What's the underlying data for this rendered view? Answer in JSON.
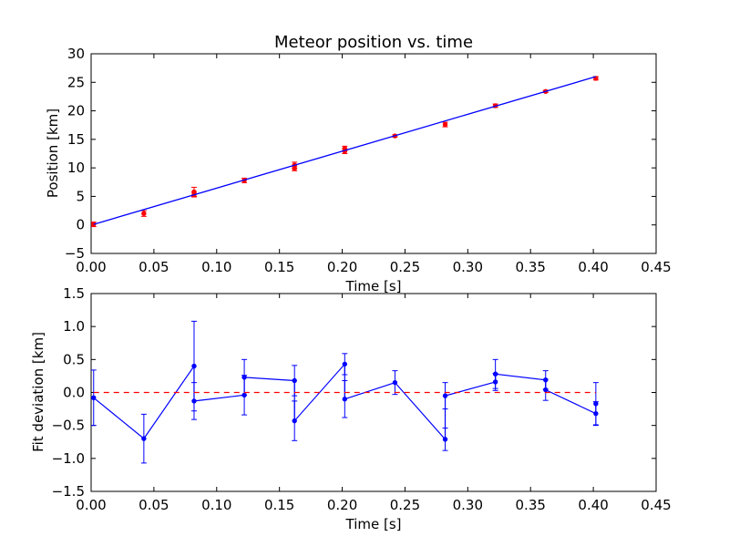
{
  "chart_data": [
    {
      "type": "line",
      "title": "Meteor position vs. time",
      "xlabel": "Time [s]",
      "ylabel": "Position [km]",
      "xlim": [
        0.0,
        0.45
      ],
      "ylim": [
        -5,
        30
      ],
      "x_ticks": [
        "0.00",
        "0.05",
        "0.10",
        "0.15",
        "0.20",
        "0.25",
        "0.30",
        "0.35",
        "0.40",
        "0.45"
      ],
      "y_ticks": [
        "−5",
        "0",
        "5",
        "10",
        "15",
        "20",
        "25",
        "30"
      ],
      "grid": false,
      "series": [
        {
          "kind": "errorbar-points",
          "color": "#ff0000",
          "x": [
            0.002,
            0.042,
            0.082,
            0.082,
            0.122,
            0.162,
            0.162,
            0.202,
            0.202,
            0.242,
            0.282,
            0.322,
            0.362,
            0.402
          ],
          "y": [
            0.1,
            2.0,
            5.8,
            5.3,
            7.8,
            10.5,
            9.9,
            13.4,
            12.9,
            15.6,
            17.6,
            20.9,
            23.4,
            25.7
          ],
          "yerr": [
            0.4,
            0.5,
            0.8,
            0.4,
            0.4,
            0.5,
            0.4,
            0.4,
            0.4,
            0.2,
            0.4,
            0.3,
            0.2,
            0.3
          ]
        },
        {
          "kind": "fit-line",
          "color": "#0000ff",
          "x": [
            0.002,
            0.402
          ],
          "y": [
            0.1,
            26.0
          ]
        }
      ]
    },
    {
      "type": "line",
      "title": "",
      "xlabel": "Time [s]",
      "ylabel": "Fit deviation [km]",
      "xlim": [
        0.0,
        0.45
      ],
      "ylim": [
        -1.5,
        1.5
      ],
      "x_ticks": [
        "0.00",
        "0.05",
        "0.10",
        "0.15",
        "0.20",
        "0.25",
        "0.30",
        "0.35",
        "0.40",
        "0.45"
      ],
      "y_ticks": [
        "−1.5",
        "−1.0",
        "−0.5",
        "0.0",
        "0.5",
        "1.0",
        "1.5"
      ],
      "grid": false,
      "series": [
        {
          "kind": "errorbar-line",
          "color": "#0000ff",
          "x": [
            0.002,
            0.042,
            0.082,
            0.082,
            0.122,
            0.122,
            0.162,
            0.162,
            0.202,
            0.202,
            0.242,
            0.282,
            0.282,
            0.322,
            0.322,
            0.362,
            0.362,
            0.402,
            0.402
          ],
          "y": [
            -0.08,
            -0.7,
            0.4,
            -0.13,
            -0.04,
            0.23,
            0.18,
            -0.43,
            0.43,
            -0.1,
            0.15,
            -0.71,
            -0.05,
            0.16,
            0.28,
            0.19,
            0.04,
            -0.32,
            -0.17
          ],
          "yerr": [
            0.42,
            0.37,
            0.68,
            0.28,
            0.3,
            0.27,
            0.23,
            0.3,
            0.16,
            0.28,
            0.18,
            0.17,
            0.2,
            0.13,
            0.22,
            0.14,
            0.16,
            0.18,
            0.32
          ]
        },
        {
          "kind": "reference-line",
          "color": "#ff0000",
          "dashed": true,
          "x": [
            0.002,
            0.402
          ],
          "y": [
            0.0,
            0.0
          ]
        }
      ]
    }
  ]
}
